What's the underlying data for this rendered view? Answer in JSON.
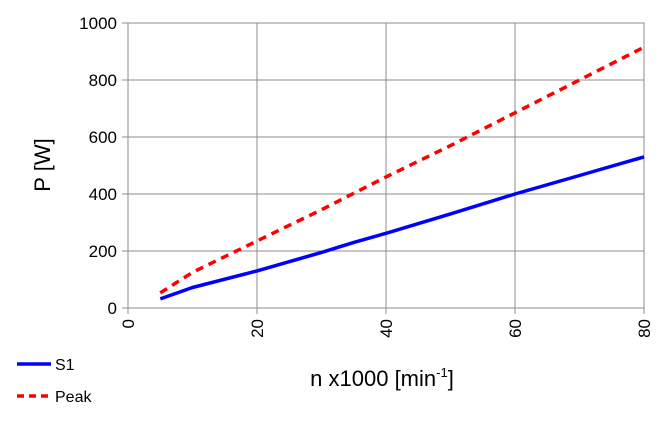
{
  "chart_data": {
    "type": "line",
    "title": "",
    "xlabel": "n x1000  [min",
    "xlabel_sup": "-1",
    "xlabel_end": "]",
    "ylabel": "P [W]",
    "xlim": [
      0,
      80
    ],
    "ylim": [
      0,
      1000
    ],
    "xticks": [
      "0",
      "20",
      "40",
      "60",
      "80"
    ],
    "yticks": [
      "0",
      "200",
      "400",
      "600",
      "800",
      "1000"
    ],
    "grid": true,
    "legend_position": "bottom-left",
    "series": [
      {
        "name": "S1",
        "color": "#0000ff",
        "dash": "solid",
        "x": [
          5,
          10,
          20,
          30,
          35,
          40,
          50,
          60,
          70,
          80
        ],
        "y": [
          32,
          72,
          130,
          195,
          230,
          262,
          330,
          400,
          465,
          530
        ]
      },
      {
        "name": "Peak",
        "color": "#ff0000",
        "dash": "dashed",
        "x": [
          5,
          10,
          20,
          30,
          40,
          50,
          60,
          70,
          80
        ],
        "y": [
          53,
          125,
          235,
          345,
          460,
          570,
          685,
          800,
          915
        ]
      }
    ]
  }
}
